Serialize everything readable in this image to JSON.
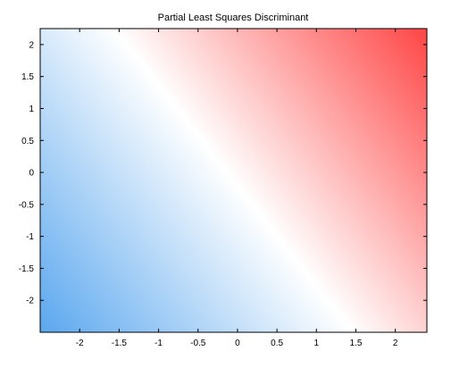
{
  "chart_data": {
    "type": "heatmap",
    "title": "Partial Least Squares Discriminant",
    "xlabel": "",
    "ylabel": "",
    "xlim": [
      -2.5,
      2.4
    ],
    "ylim": [
      -2.5,
      2.25
    ],
    "xticks": [
      -2,
      -1.5,
      -1,
      -0.5,
      0,
      0.5,
      1,
      1.5,
      2
    ],
    "yticks": [
      -2,
      -1.5,
      -1,
      -0.5,
      0,
      0.5,
      1,
      1.5,
      2
    ],
    "xtick_labels": [
      "-2",
      "-1.5",
      "-1",
      "-0.5",
      "0",
      "0.5",
      "1",
      "1.5",
      "2"
    ],
    "ytick_labels": [
      "-2",
      "-1.5",
      "-1",
      "-0.5",
      "0",
      "0.5",
      "1",
      "1.5",
      "2"
    ],
    "grid": false,
    "colormap": {
      "negative": "#5aa7ef",
      "zero": "#ffffff",
      "positive": "#ff4545"
    },
    "decision_boundary": "diagonal white band from upper-left to lower-right"
  }
}
